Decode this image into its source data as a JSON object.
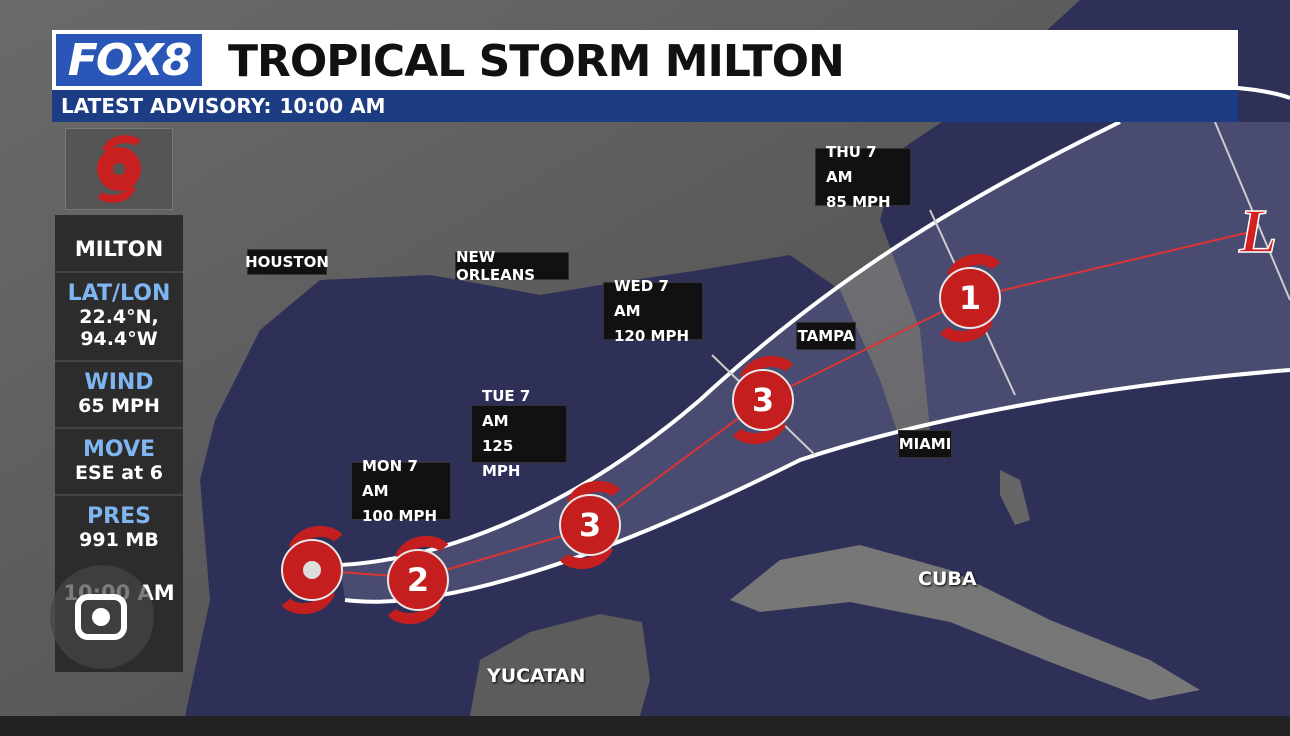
{
  "header": {
    "logo": "FOX8",
    "title": "TROPICAL STORM MILTON",
    "advisory_label": "LATEST ADVISORY:",
    "advisory_time": "10:00 AM"
  },
  "sidebar": {
    "name": "MILTON",
    "fields": [
      {
        "label": "LAT/LON",
        "lines": [
          "22.4°N,",
          "94.4°W"
        ]
      },
      {
        "label": "WIND",
        "lines": [
          "65 MPH"
        ]
      },
      {
        "label": "MOVE",
        "lines": [
          "ESE at 6"
        ]
      },
      {
        "label": "PRES",
        "lines": [
          "991 MB"
        ]
      }
    ],
    "time": "10:00 AM"
  },
  "map": {
    "places": [
      "HOUSTON",
      "NEW ORLEANS",
      "TAMPA",
      "MIAMI",
      "CUBA",
      "YUCATAN"
    ],
    "forecast": [
      {
        "time": "MON 7 AM",
        "wind": "100 MPH"
      },
      {
        "time": "TUE 7 AM",
        "wind": "125 MPH"
      },
      {
        "time": "WED 7 AM",
        "wind": "120 MPH"
      },
      {
        "time": "THU 7 AM",
        "wind": "85 MPH"
      }
    ],
    "markers": [
      "2",
      "3",
      "3",
      "1",
      "L"
    ]
  }
}
